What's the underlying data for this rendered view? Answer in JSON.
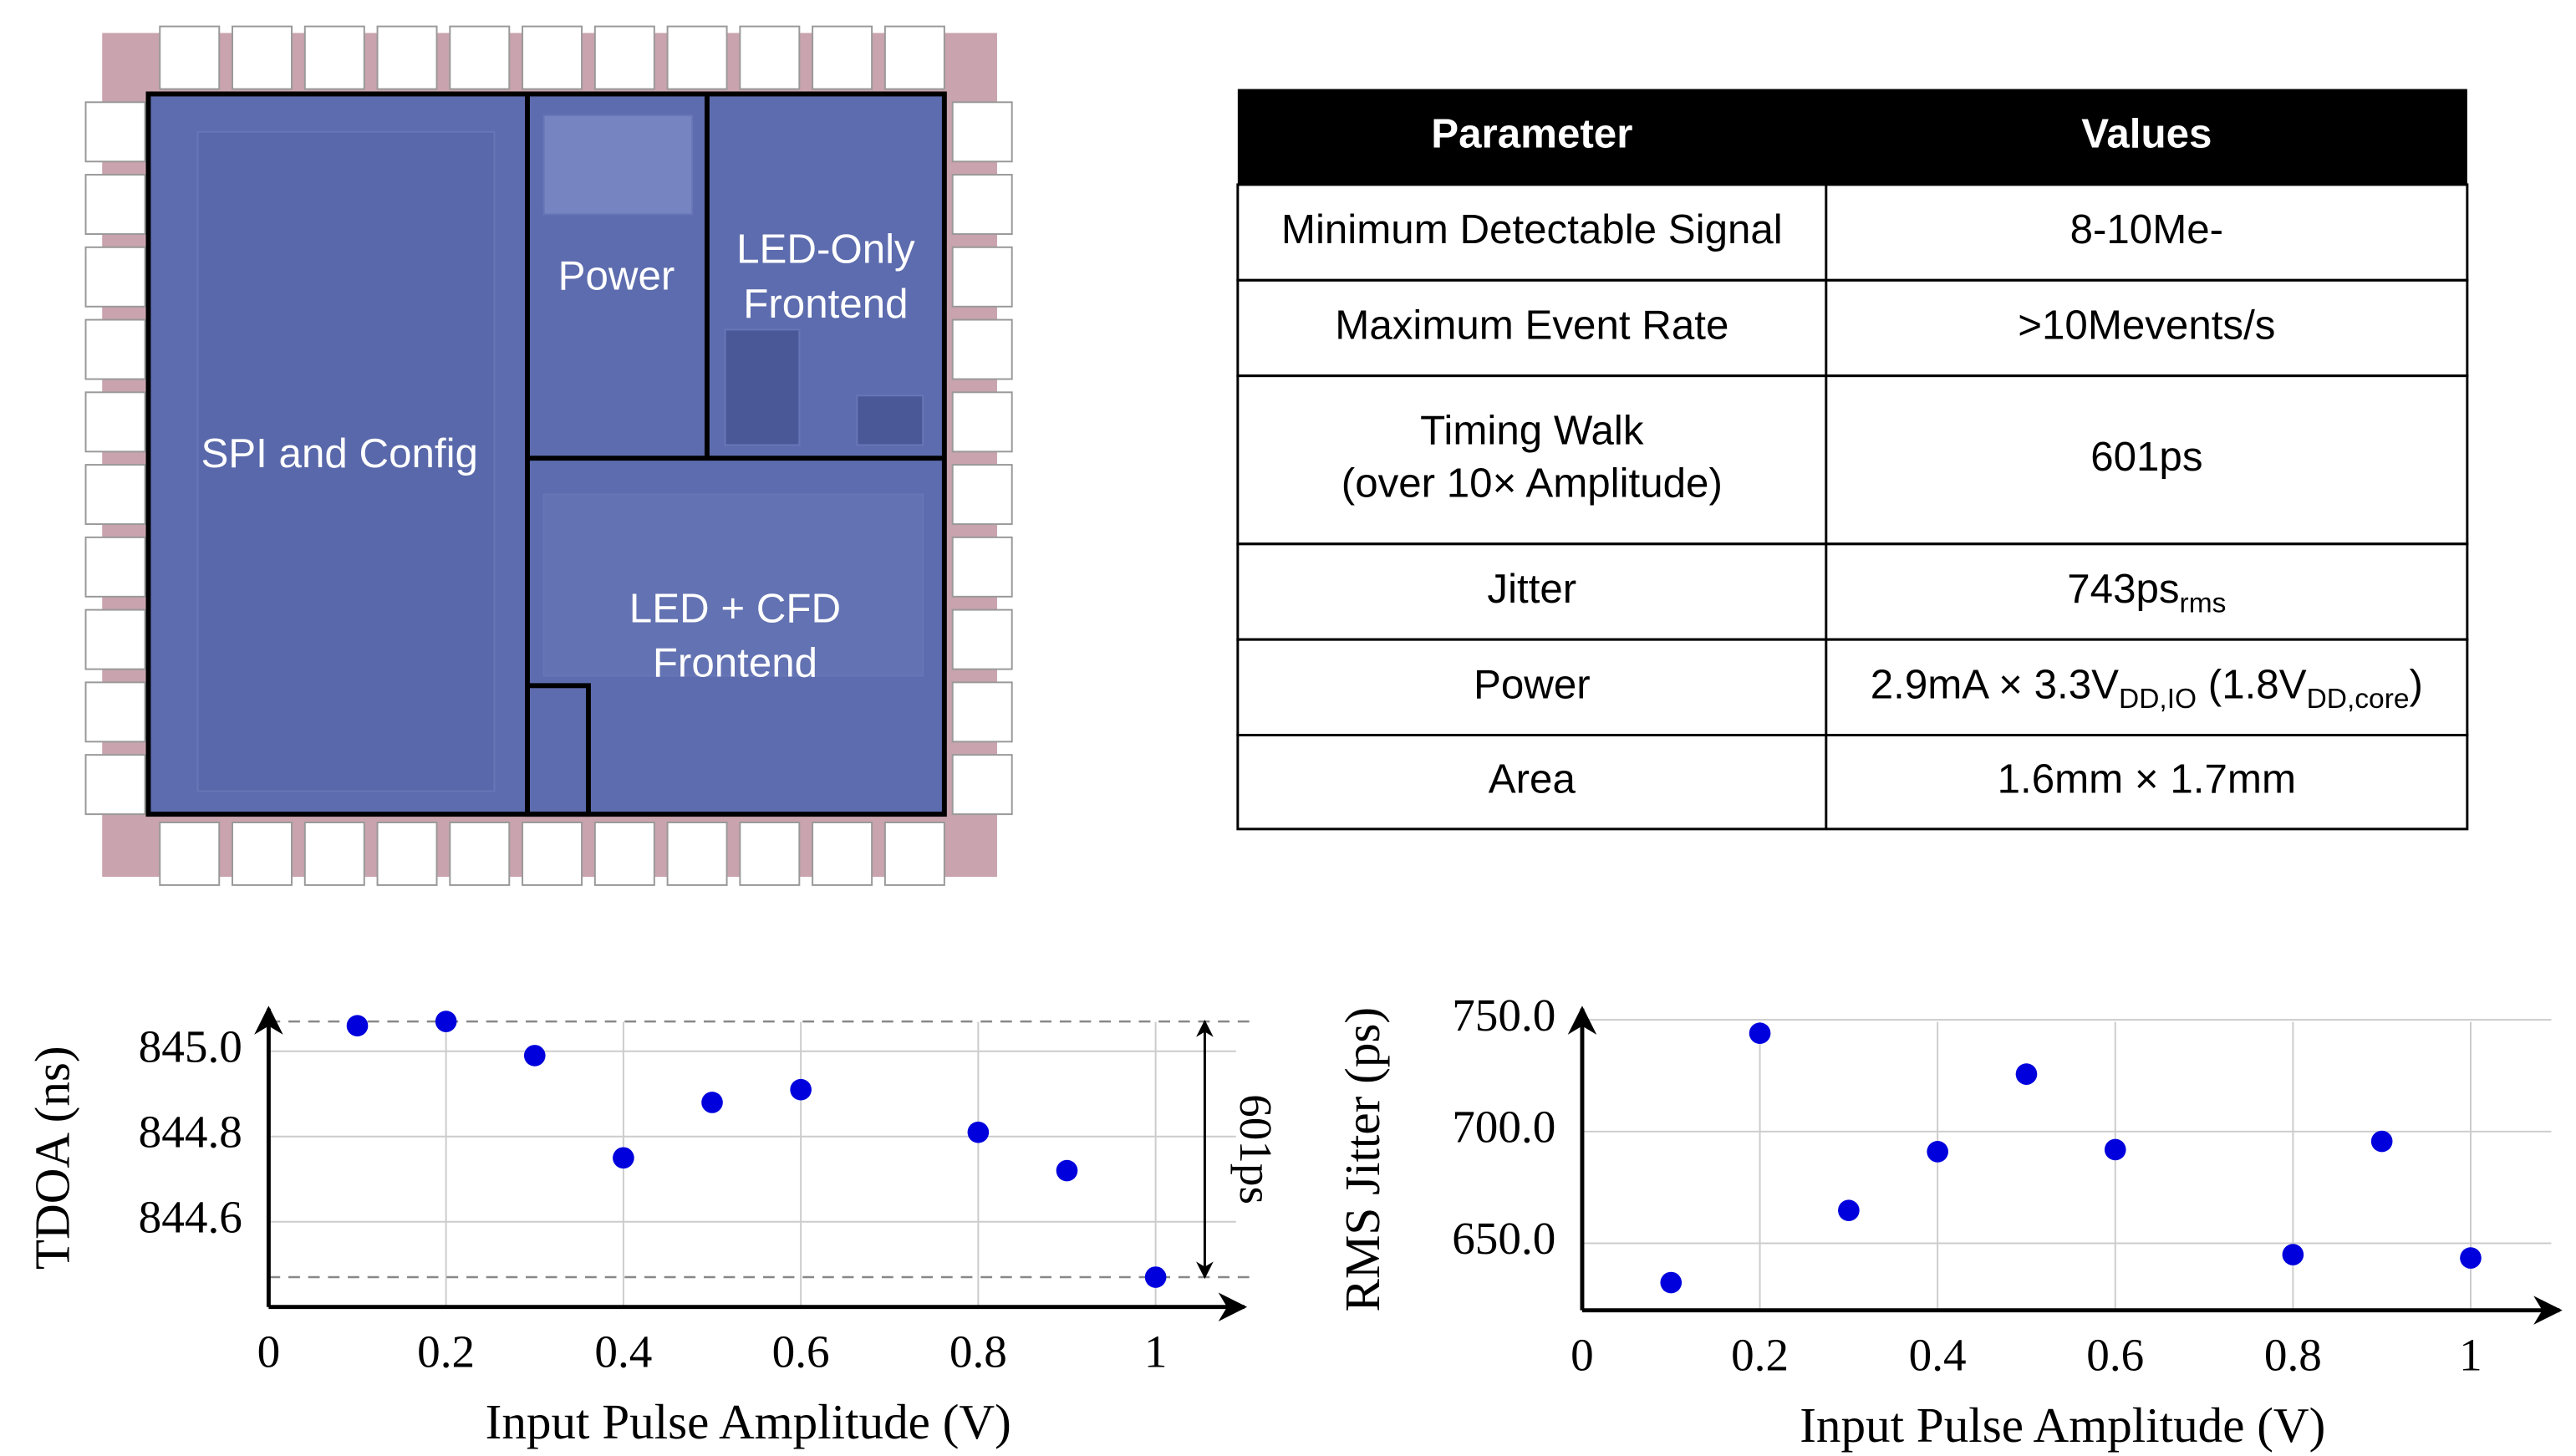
{
  "die": {
    "labels": [
      "SPI and Config",
      "Power",
      [
        "LED-Only",
        "Frontend"
      ],
      [
        "LED + CFD",
        "Frontend"
      ]
    ]
  },
  "table": {
    "header": [
      "Parameter",
      "Values"
    ],
    "rows": [
      [
        [
          "Minimum Detectable Signal"
        ],
        [
          "8-10Me-"
        ]
      ],
      [
        [
          "Maximum Event Rate"
        ],
        [
          ">10Mevents/s"
        ]
      ],
      [
        [
          "Timing Walk",
          "(over 10× Amplitude)"
        ],
        [
          "601ps"
        ]
      ],
      [
        [
          "Jitter"
        ],
        [
          "743ps",
          "rms"
        ]
      ],
      [
        [
          "Power"
        ],
        [
          "2.9mA × 3.3V",
          "DD,IO",
          " (1.8V",
          "DD,core",
          ")"
        ]
      ],
      [
        [
          "Area"
        ],
        [
          "1.6mm × 1.7mm"
        ]
      ]
    ]
  },
  "chart_data": [
    {
      "type": "scatter",
      "x_label": "Input Pulse Amplitude (V)",
      "y_label": "TDOA (ns)",
      "x": [
        0.1,
        0.2,
        0.3,
        0.4,
        0.5,
        0.6,
        0.8,
        0.9,
        1.0
      ],
      "values": [
        845.06,
        845.07,
        844.99,
        844.75,
        844.88,
        844.91,
        844.81,
        844.72,
        844.47
      ],
      "color": "#0000dd",
      "xlim": [
        0,
        1.1
      ],
      "xticks": [
        0,
        0.2,
        0.4,
        0.6,
        0.8,
        1
      ],
      "ylim": [
        844.4,
        845.1
      ],
      "yticks": [
        {
          "value": 844.6,
          "label": "844.6"
        },
        {
          "value": 844.8,
          "label": "844.8"
        },
        {
          "value": 845,
          "label": "845.0"
        }
      ],
      "grid": true,
      "hlines": [
        845.07,
        844.47
      ],
      "annotation": "601ps"
    },
    {
      "type": "scatter",
      "x_label": "Input Pulse Amplitude (V)",
      "y_label": "RMS Jitter (ps)",
      "x": [
        0.1,
        0.2,
        0.3,
        0.4,
        0.5,
        0.6,
        0.8,
        0.9,
        1.0
      ],
      "values": [
        632.4,
        744,
        664.7,
        691,
        725.7,
        691.9,
        644.9,
        695.6,
        643.4
      ],
      "color": "#0000dd",
      "xlim": [
        0,
        1.1
      ],
      "xticks": [
        0,
        0.2,
        0.4,
        0.6,
        0.8,
        1
      ],
      "ylim": [
        620,
        755
      ],
      "yticks": [
        {
          "value": 650,
          "label": "650.0"
        },
        {
          "value": 700,
          "label": "700.0"
        },
        {
          "value": 750,
          "label": "750.0"
        }
      ],
      "grid": true
    }
  ]
}
